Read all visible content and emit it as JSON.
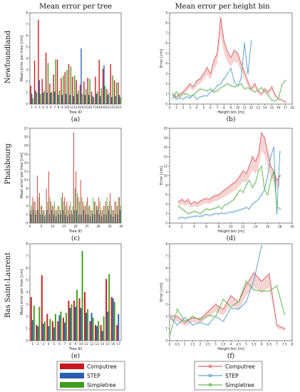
{
  "column_titles": [
    "Mean error per tree",
    "Mean error per height bin"
  ],
  "row_labels": [
    "Newfoundland",
    "Phalsbourg",
    "Bas Saint-Laurent"
  ],
  "colors": {
    "computree": "#c8181b",
    "step": "#2a5db0",
    "simpletree": "#3f9e1e",
    "line_computree": "#d0484a",
    "line_step": "#3c8fc0",
    "line_simpletree": "#40a830",
    "band": "#f1c2c2"
  },
  "legend": {
    "computree": "Computree",
    "step": "STEP",
    "simpletree": "Simpletree"
  },
  "chart_data": [
    {
      "id": "a",
      "type": "bar",
      "panel_label": "(a)",
      "xlabel": "Tree ID",
      "ylabel": "Mean error per tree [cm]",
      "ylim": [
        0,
        8
      ],
      "yticks": [
        0,
        1,
        2,
        3,
        4,
        5,
        6,
        7,
        8
      ],
      "categories": [
        "1",
        "2",
        "3",
        "4",
        "5",
        "6",
        "7",
        "8",
        "9",
        "10",
        "11",
        "12",
        "13",
        "14",
        "15",
        "16",
        "17",
        "18",
        "19",
        "20",
        "21",
        "22",
        "23",
        "24"
      ],
      "series": [
        {
          "name": "Computree",
          "values": [
            1.6,
            3.8,
            7.4,
            2.2,
            4.5,
            1.8,
            2.6,
            3.9,
            2.3,
            2.8,
            3.5,
            2.4,
            2.1,
            1.7,
            2.0,
            2.3,
            1.1,
            2.4,
            3.9,
            3.1,
            1.3,
            3.5,
            2.1,
            1.9
          ]
        },
        {
          "name": "STEP",
          "values": [
            0.9,
            1.2,
            2.1,
            1.0,
            1.0,
            1.0,
            1.1,
            0.8,
            0.8,
            0.9,
            0.8,
            0.7,
            0.9,
            4.9,
            0.8,
            0.8,
            0.7,
            0.9,
            0.7,
            3.4,
            0.8,
            0.6,
            0.7,
            0.8
          ]
        },
        {
          "name": "Simpletree",
          "values": [
            0.5,
            1.0,
            0.9,
            1.2,
            3.6,
            1.1,
            3.9,
            1.2,
            2.5,
            3.0,
            3.3,
            2.5,
            1.2,
            0.9,
            1.3,
            2.2,
            0.6,
            1.1,
            1.4,
            1.6,
            1.0,
            2.5,
            1.9,
            0.6
          ]
        }
      ]
    },
    {
      "id": "b",
      "type": "line",
      "panel_label": "(b)",
      "xlabel": "Height bin [m]",
      "ylabel": "Error [cm]",
      "xlim": [
        0,
        18
      ],
      "ylim": [
        0,
        9
      ],
      "xticks": [
        0,
        1,
        2,
        3,
        4,
        5,
        6,
        7,
        8,
        9,
        10,
        11,
        12,
        13,
        14,
        15,
        16,
        17,
        18
      ],
      "yticks": [
        0,
        1,
        2,
        3,
        4,
        5,
        6,
        7,
        8,
        9
      ],
      "series": [
        {
          "name": "Computree",
          "x": [
            0.5,
            1,
            1.5,
            2,
            2.5,
            3,
            3.5,
            4,
            4.5,
            5,
            5.5,
            6,
            6.5,
            7,
            7.5,
            8,
            8.5,
            9,
            9.5,
            10,
            10.5,
            11,
            11.5,
            12,
            12.5,
            13,
            13.5,
            14,
            14.5,
            15,
            15.5,
            16,
            16.5,
            17
          ],
          "y": [
            1.0,
            0.7,
            1.0,
            1.2,
            1.6,
            2.0,
            1.7,
            2.3,
            2.5,
            3.0,
            3.6,
            3.0,
            4.3,
            5.0,
            8.5,
            6.2,
            5.2,
            4.6,
            5.3,
            5.0,
            4.0,
            3.2,
            2.2,
            1.5,
            2.0,
            1.3,
            1.0,
            1.5,
            1.2,
            1.7,
            0.9,
            0.5,
            0.4,
            0.2
          ]
        },
        {
          "name": "STEP",
          "x": [
            0.5,
            1,
            1.5,
            2,
            2.5,
            3,
            3.5,
            4,
            4.5,
            5,
            5.5,
            6,
            6.5,
            7,
            7.5,
            8,
            8.5,
            9,
            9.5,
            10,
            10.5,
            11,
            11.5,
            12
          ],
          "y": [
            0.9,
            0.5,
            0.6,
            0.5,
            0.7,
            0.6,
            0.9,
            0.5,
            0.7,
            0.8,
            0.8,
            1.2,
            1.4,
            1.8,
            2.0,
            2.5,
            3.0,
            3.5,
            2.2,
            1.8,
            2.5,
            6.0,
            3.0,
            6.2
          ]
        },
        {
          "name": "Simpletree",
          "x": [
            0.5,
            1,
            1.5,
            2,
            2.5,
            3,
            3.5,
            4,
            4.5,
            5,
            5.5,
            6,
            6.5,
            7,
            7.5,
            8,
            8.5,
            9,
            9.5,
            10,
            10.5,
            11,
            11.5,
            12,
            12.5,
            13,
            13.5,
            14,
            14.5,
            15,
            15.5,
            16,
            16.5,
            17
          ],
          "y": [
            0.6,
            1.2,
            0.7,
            1.0,
            1.0,
            0.8,
            0.9,
            1.2,
            1.5,
            1.4,
            1.3,
            1.5,
            1.2,
            1.3,
            1.6,
            1.8,
            2.0,
            1.8,
            1.7,
            1.8,
            2.0,
            1.5,
            1.6,
            1.4,
            1.2,
            1.4,
            1.6,
            1.2,
            0.9,
            0.4,
            0.3,
            0.6,
            1.9,
            2.3
          ]
        }
      ]
    },
    {
      "id": "c",
      "type": "bar",
      "panel_label": "(c)",
      "xlabel": "Tree ID",
      "ylabel": "Mean error per tree [cm]",
      "ylim": [
        0,
        22
      ],
      "yticks": [
        0,
        2,
        4,
        6,
        8,
        10,
        12,
        14,
        16,
        18,
        20,
        22
      ],
      "xticks": [
        0,
        5,
        10,
        15,
        20,
        25,
        30,
        35,
        40
      ],
      "categories": [
        "1",
        "2",
        "3",
        "4",
        "5",
        "6",
        "7",
        "8",
        "9",
        "10",
        "11",
        "12",
        "13",
        "14",
        "15",
        "16",
        "17",
        "18",
        "19",
        "20",
        "21",
        "22",
        "23",
        "24",
        "25",
        "26",
        "27",
        "28",
        "29",
        "30",
        "31",
        "32",
        "33",
        "34",
        "35",
        "36",
        "37",
        "38",
        "39",
        "40"
      ],
      "series": [
        {
          "name": "Computree",
          "values": [
            3,
            6,
            5,
            11,
            7,
            4,
            3,
            8,
            12,
            5,
            4,
            3,
            4,
            3,
            7,
            6,
            5,
            4,
            3,
            21,
            12,
            6,
            10,
            5,
            4,
            6,
            4,
            3,
            5,
            4,
            6,
            3,
            4,
            5,
            4,
            7,
            3,
            5,
            4,
            6
          ]
        },
        {
          "name": "STEP",
          "values": [
            2,
            3,
            2,
            3,
            2,
            2,
            1.5,
            3,
            2,
            3,
            2,
            1.5,
            2,
            2,
            3,
            2,
            1.5,
            2,
            2,
            3,
            3,
            2,
            2,
            3,
            2,
            2,
            1.5,
            2,
            2,
            3,
            2,
            1.5,
            2,
            2,
            3,
            2,
            1.5,
            2,
            2,
            3
          ]
        },
        {
          "name": "Simpletree",
          "values": [
            4,
            5,
            3,
            6,
            4,
            3,
            2,
            5,
            6,
            4,
            5,
            3,
            4,
            6,
            5,
            4,
            3,
            5,
            4,
            8,
            7,
            5,
            6,
            4,
            5,
            4,
            3,
            6,
            5,
            4,
            5,
            3,
            4,
            6,
            5,
            4,
            3,
            5,
            6,
            4
          ]
        }
      ]
    },
    {
      "id": "d",
      "type": "line",
      "panel_label": "(d)",
      "xlabel": "Height bin [m]",
      "ylabel": "Error [cm]",
      "xlim": [
        0,
        20
      ],
      "ylim": [
        0,
        20
      ],
      "xticks": [
        0,
        2,
        4,
        6,
        8,
        10,
        12,
        14,
        16,
        18,
        20
      ],
      "yticks": [
        0,
        2,
        4,
        6,
        8,
        10,
        12,
        14,
        16,
        18,
        20
      ],
      "series": [
        {
          "name": "Computree",
          "x": [
            1.5,
            2,
            2.5,
            3,
            3.5,
            4,
            4.5,
            5,
            5.5,
            6,
            6.5,
            7,
            7.5,
            8,
            8.5,
            9,
            9.5,
            10,
            10.5,
            11,
            11.5,
            12,
            12.5,
            13,
            13.5,
            14,
            14.5,
            15,
            15.5,
            16,
            16.5,
            17,
            17.5,
            18
          ],
          "y": [
            4.5,
            5.0,
            4.5,
            5.0,
            4.0,
            4.5,
            4.2,
            4.6,
            5.0,
            5.2,
            5.0,
            5.5,
            5.8,
            6.0,
            6.5,
            7.0,
            7.5,
            8.0,
            8.5,
            9.0,
            10.0,
            11.0,
            10.5,
            12.0,
            14.0,
            13.0,
            14.5,
            19.0,
            18.0,
            15.0,
            12.0,
            11.0,
            9.0,
            10.0
          ]
        },
        {
          "name": "STEP",
          "x": [
            1.5,
            2,
            2.5,
            3,
            3.5,
            4,
            4.5,
            5,
            5.5,
            6,
            6.5,
            7,
            7.5,
            8,
            8.5,
            9,
            9.5,
            10,
            10.5,
            11,
            11.5,
            12,
            12.5,
            13,
            13.5,
            14,
            14.5,
            15,
            15.5,
            16,
            16.5,
            17,
            17.5,
            18
          ],
          "y": [
            1.0,
            1.2,
            1.0,
            1.2,
            1.3,
            1.4,
            1.5,
            1.4,
            1.6,
            1.8,
            1.6,
            1.8,
            2.0,
            1.9,
            2.1,
            2.0,
            2.2,
            2.3,
            2.4,
            2.6,
            2.8,
            3.0,
            3.3,
            3.0,
            4.0,
            4.5,
            5.0,
            6.0,
            7.0,
            10.0,
            14.0,
            16.0,
            2.0,
            15.0
          ]
        },
        {
          "name": "Simpletree",
          "x": [
            1.5,
            2,
            2.5,
            3,
            3.5,
            4,
            4.5,
            5,
            5.5,
            6,
            6.5,
            7,
            7.5,
            8,
            8.5,
            9,
            9.5,
            10,
            10.5,
            11,
            11.5,
            12,
            12.5,
            13,
            13.5,
            14,
            14.5,
            15,
            15.5,
            16,
            16.5,
            17,
            17.5,
            18
          ],
          "y": [
            3.5,
            3.0,
            2.5,
            2.0,
            2.2,
            2.5,
            2.3,
            2.0,
            2.5,
            3.0,
            2.8,
            3.0,
            3.2,
            3.5,
            3.0,
            3.8,
            4.0,
            4.5,
            5.0,
            6.0,
            7.0,
            6.5,
            8.0,
            9.0,
            7.5,
            8.5,
            11.0,
            12.0,
            7.0,
            6.0,
            9.0,
            11.0,
            3.5,
            3.0
          ]
        }
      ]
    },
    {
      "id": "e",
      "type": "bar",
      "panel_label": "(e)",
      "xlabel": "Tree ID",
      "ylabel": "Mean error per tree [cm]",
      "ylim": [
        0,
        8
      ],
      "yticks": [
        0,
        1,
        2,
        3,
        4,
        5,
        6,
        7,
        8
      ],
      "categories": [
        "1",
        "2",
        "3",
        "4",
        "5",
        "6",
        "7",
        "8",
        "9",
        "10",
        "11",
        "12",
        "13",
        "14",
        "15",
        "16",
        "17"
      ],
      "series": [
        {
          "name": "Computree",
          "values": [
            3.6,
            1.3,
            5.4,
            2.2,
            1.6,
            1.6,
            1.9,
            3.3,
            3.3,
            3.5,
            4.0,
            1.6,
            1.3,
            1.3,
            5.1,
            3.6,
            1.3
          ]
        },
        {
          "name": "STEP",
          "values": [
            1.7,
            1.2,
            1.4,
            1.2,
            1.1,
            2.1,
            1.5,
            2.7,
            2.8,
            2.7,
            2.3,
            2.3,
            1.2,
            0.8,
            2.4,
            3.5,
            2.2
          ]
        },
        {
          "name": "Simpletree",
          "values": [
            2.9,
            2.8,
            1.6,
            1.8,
            2.2,
            2.4,
            2.3,
            3.0,
            4.2,
            7.4,
            2.6,
            1.9,
            1.6,
            2.0,
            5.5,
            3.2,
            0.0
          ]
        }
      ]
    },
    {
      "id": "f",
      "type": "line",
      "panel_label": "(f)",
      "xlabel": "Height bin [m]",
      "ylabel": "Error [cm]",
      "xlim": [
        0,
        8
      ],
      "ylim": [
        0,
        8
      ],
      "xticks": [
        0,
        0.5,
        1,
        1.5,
        2,
        2.5,
        3,
        3.5,
        4,
        4.5,
        5,
        5.5,
        6,
        6.5,
        7,
        7.5,
        8
      ],
      "xticklabels": [
        "0",
        "0.5",
        "1",
        "1.5",
        "2",
        "2.5",
        "3",
        "3.5",
        "4",
        "4.5",
        "5",
        "5.5",
        "6",
        "6.5",
        "7",
        "7.5",
        "8"
      ],
      "yticks": [
        0,
        1,
        2,
        3,
        4,
        5,
        6,
        7,
        8
      ],
      "series": [
        {
          "name": "Computree",
          "x": [
            0,
            0.5,
            1,
            1.5,
            2,
            2.5,
            3,
            3.5,
            4,
            4.5,
            5,
            5.5,
            6,
            6.5,
            7,
            7.5
          ],
          "y": [
            2.1,
            2.0,
            1.5,
            1.9,
            1.8,
            2.4,
            3.0,
            2.6,
            3.7,
            3.2,
            4.6,
            5.6,
            4.9,
            5.5,
            1.3,
            1.0
          ]
        },
        {
          "name": "STEP",
          "x": [
            0,
            0.5,
            1,
            1.5,
            2,
            2.5,
            3,
            3.5,
            4,
            4.5,
            5,
            5.5,
            6
          ],
          "y": [
            2.0,
            1.3,
            1.9,
            1.3,
            1.5,
            1.3,
            2.0,
            1.6,
            2.7,
            2.6,
            3.2,
            5.0,
            7.8
          ]
        },
        {
          "name": "Simpletree",
          "x": [
            0,
            0.5,
            1,
            1.5,
            2,
            2.5,
            3,
            3.5,
            4,
            4.5,
            5,
            5.5,
            6,
            6.5,
            7,
            7.5
          ],
          "y": [
            0.4,
            2.6,
            1.6,
            2.0,
            1.7,
            2.1,
            2.0,
            3.4,
            2.8,
            3.2,
            4.9,
            4.2,
            4.1,
            4.1,
            4.5,
            2.2
          ]
        }
      ]
    }
  ]
}
